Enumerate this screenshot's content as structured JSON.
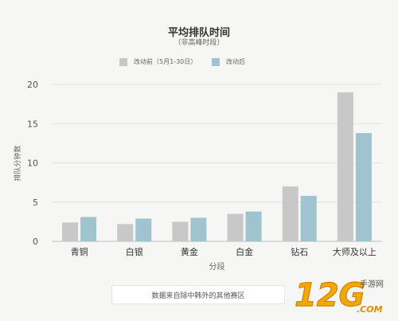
{
  "chart_data": {
    "type": "bar",
    "title": "平均排队时间",
    "subtitle": "（非高峰时段）",
    "xlabel": "分段",
    "ylabel": "排队分钟数",
    "categories": [
      "青铜",
      "白银",
      "黄金",
      "白金",
      "钻石",
      "大师及以上"
    ],
    "series": [
      {
        "name": "改动前（5月1-30日）",
        "values": [
          2.4,
          2.2,
          2.5,
          3.5,
          7.0,
          19.0
        ],
        "color": "#c8c8c8"
      },
      {
        "name": "改动后",
        "values": [
          3.1,
          2.9,
          3.0,
          3.8,
          5.8,
          13.8
        ],
        "color": "#9fc3cf"
      }
    ],
    "ylim": [
      0,
      20
    ],
    "yticks": [
      0,
      5,
      10,
      15,
      20
    ],
    "grid": true,
    "legend_position": "top-center"
  },
  "footer_note": "数据来自除中韩外的其他赛区",
  "watermark": {
    "brand": "12G",
    "domain": ".COM",
    "tagline": "手游网"
  }
}
